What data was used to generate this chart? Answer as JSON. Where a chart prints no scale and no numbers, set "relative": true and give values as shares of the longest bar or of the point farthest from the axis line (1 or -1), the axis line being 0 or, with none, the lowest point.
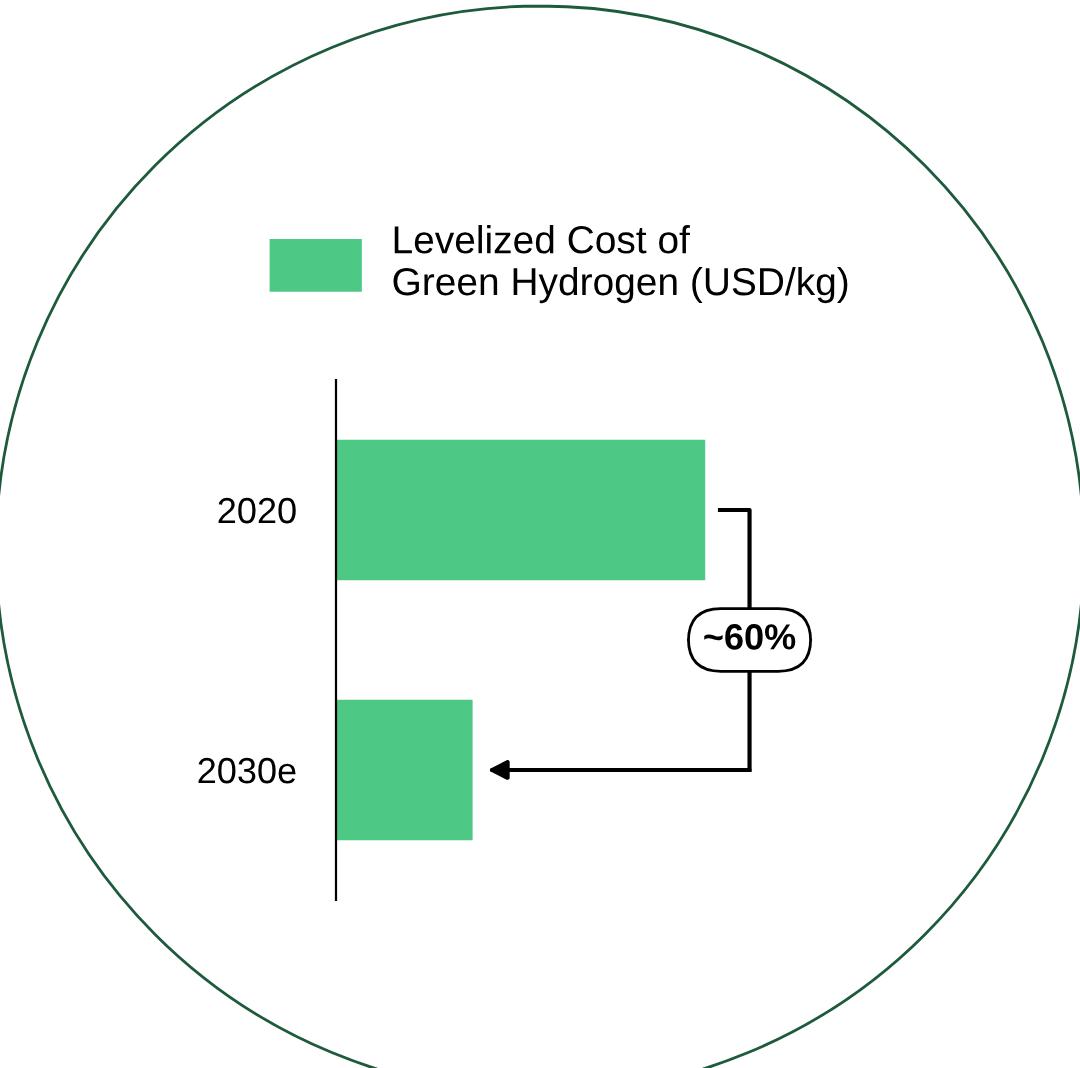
{
  "chart_data": {
    "type": "bar",
    "orientation": "horizontal",
    "relative": true,
    "categories": [
      "2020",
      "2030e"
    ],
    "series": [
      {
        "name": "Levelized Cost of\nGreen Hydrogen (USD/kg)",
        "color": "#4dc885",
        "values": [
          1,
          0.37
        ]
      }
    ],
    "annotations": [
      "~60%"
    ],
    "legend": "top",
    "grid": false
  }
}
